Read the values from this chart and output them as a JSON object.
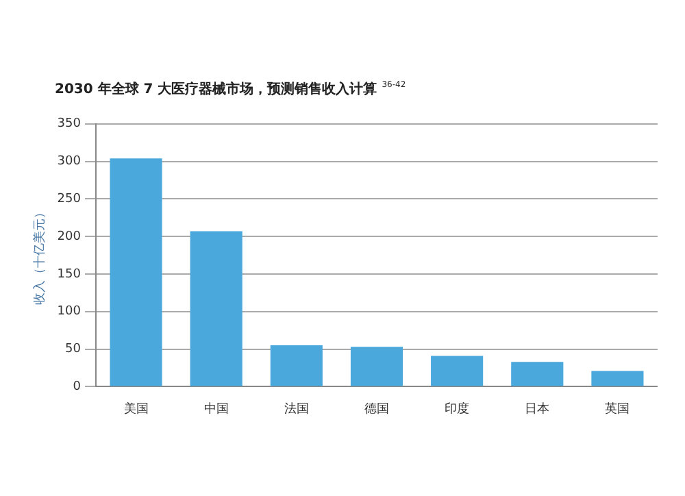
{
  "chart_data": {
    "type": "bar",
    "title": "2030 年全球 7 大医疗器械市场，预测销售收入计算 $^{36-42}$",
    "ylabel": "收入（十亿美元）",
    "categories": [
      "美国",
      "中国",
      "法国",
      "德国",
      "印度",
      "日本",
      "英国"
    ],
    "values": [
      304,
      207,
      55,
      53,
      41,
      33,
      21
    ],
    "color": "#4aa8dc",
    "ylim": [
      0,
      350
    ],
    "yticks": [
      0,
      50,
      100,
      150,
      200,
      250,
      300,
      350
    ],
    "grid": "y",
    "legend": false
  }
}
